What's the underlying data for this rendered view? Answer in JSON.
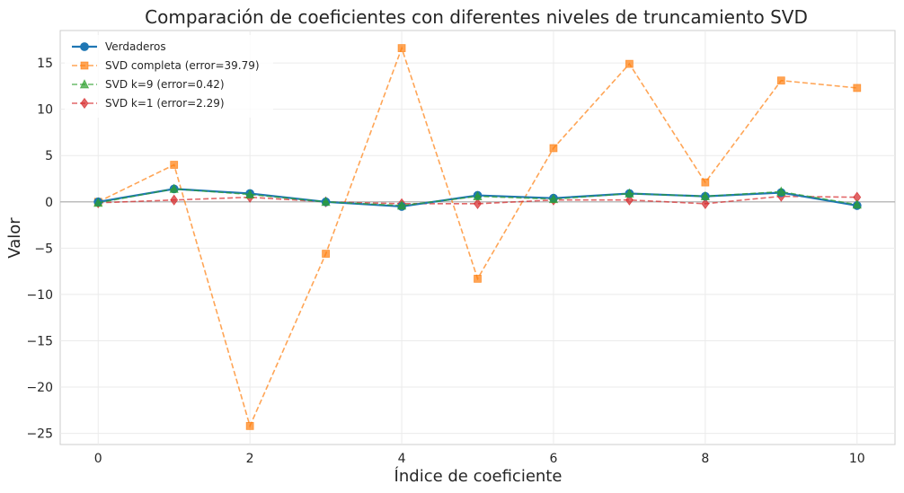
{
  "chart_data": {
    "type": "line",
    "title": "Comparación de coeficientes con diferentes niveles de truncamiento SVD",
    "xlabel": "Índice de coeficiente",
    "ylabel": "Valor",
    "x": [
      0,
      1,
      2,
      3,
      4,
      5,
      6,
      7,
      8,
      9,
      10
    ],
    "xlim": [
      -0.5,
      10.5
    ],
    "ylim": [
      -26.2,
      18.5
    ],
    "xticks": [
      0,
      2,
      4,
      6,
      8,
      10
    ],
    "yticks": [
      -25,
      -20,
      -15,
      -10,
      -5,
      0,
      5,
      10,
      15
    ],
    "grid": true,
    "legend_position": "top-left",
    "zero_line": true,
    "series": [
      {
        "name": "Verdaderos",
        "color": "#1f77b4",
        "linestyle": "solid",
        "marker": "circle",
        "values": [
          0.0,
          1.4,
          0.9,
          0.0,
          -0.5,
          0.7,
          0.4,
          0.9,
          0.6,
          1.0,
          -0.4
        ]
      },
      {
        "name": "SVD completa (error=39.79)",
        "color": "#ff7f0e",
        "linestyle": "dashed",
        "marker": "square",
        "values": [
          0.0,
          4.0,
          -24.2,
          -5.6,
          16.6,
          -8.3,
          5.8,
          14.9,
          2.1,
          13.1,
          12.3
        ]
      },
      {
        "name": "SVD k=9 (error=0.42)",
        "color": "#2ca02c",
        "linestyle": "dashed",
        "marker": "triangle",
        "values": [
          -0.1,
          1.4,
          0.8,
          0.0,
          -0.4,
          0.6,
          0.3,
          0.9,
          0.6,
          1.1,
          -0.3
        ]
      },
      {
        "name": "SVD k=1 (error=2.29)",
        "color": "#d62728",
        "linestyle": "dashed",
        "marker": "diamond",
        "values": [
          -0.1,
          0.2,
          0.5,
          0.0,
          -0.2,
          -0.2,
          0.2,
          0.2,
          -0.2,
          0.6,
          0.5
        ]
      }
    ]
  }
}
